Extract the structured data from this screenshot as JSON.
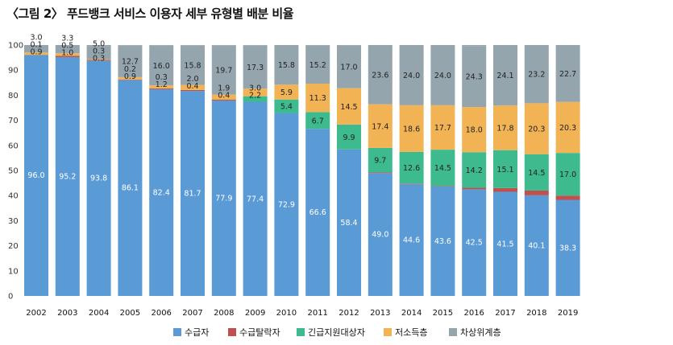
{
  "title": "〈그림 2〉 푸드뱅크 서비스 이용자 세부 유형별 배분 비율",
  "chart_data": {
    "type": "bar",
    "stacked": true,
    "title": "〈그림 2〉 푸드뱅크 서비스 이용자 세부 유형별 배분 비율",
    "categories": [
      "2002",
      "2003",
      "2004",
      "2005",
      "2006",
      "2007",
      "2008",
      "2009",
      "2010",
      "2011",
      "2012",
      "2013",
      "2014",
      "2015",
      "2016",
      "2017",
      "2018",
      "2019"
    ],
    "ylim": [
      0,
      100
    ],
    "yticks": [
      0,
      10,
      20,
      30,
      40,
      50,
      60,
      70,
      80,
      90,
      100
    ],
    "grid": false,
    "legend": "bottom",
    "series": [
      {
        "name": "수급자",
        "color": "#5b9bd5",
        "values": [
          96.0,
          95.2,
          93.8,
          86.1,
          82.4,
          81.7,
          77.9,
          77.4,
          72.9,
          66.6,
          58.4,
          49.0,
          44.6,
          43.6,
          42.5,
          41.5,
          40.1,
          38.3
        ]
      },
      {
        "name": "수급탈락자",
        "color": "#c0504d",
        "values": [
          0.1,
          0.5,
          0.3,
          0.2,
          0.3,
          0.4,
          0.4,
          0,
          0,
          0,
          0,
          0.3,
          0.2,
          0.2,
          0.6,
          1.5,
          1.9,
          1.7
        ]
      },
      {
        "name": "긴급지원대상자",
        "color": "#3dbb8e",
        "values": [
          0,
          0,
          0,
          0,
          0,
          0,
          0,
          2.2,
          5.4,
          6.7,
          9.9,
          9.7,
          12.6,
          14.5,
          14.2,
          15.1,
          14.5,
          17.0
        ]
      },
      {
        "name": "저소득층",
        "color": "#f2b354",
        "values": [
          0.9,
          1.0,
          0.3,
          0.9,
          1.2,
          2.0,
          1.9,
          3.0,
          5.9,
          11.3,
          14.5,
          17.4,
          18.6,
          17.7,
          18.0,
          17.8,
          20.3,
          20.3
        ]
      },
      {
        "name": "차상위계층",
        "color": "#95a5ae",
        "values": [
          3.0,
          3.3,
          5.0,
          12.7,
          16.0,
          15.8,
          19.7,
          17.3,
          15.8,
          15.2,
          17.0,
          23.6,
          24.0,
          24.0,
          24.3,
          24.1,
          23.2,
          22.7
        ]
      }
    ],
    "labels": [
      [
        "96.0",
        "0.1",
        "",
        "0.9",
        "3.0"
      ],
      [
        "95.2",
        "0.5",
        "",
        "1.0",
        "3.3"
      ],
      [
        "93.8",
        "0.3",
        "",
        "0.3",
        "5.0"
      ],
      [
        "86.1",
        "0.2",
        "",
        "0.9",
        "12.7"
      ],
      [
        "82.4",
        "0.3",
        "",
        "1.2",
        "16.0"
      ],
      [
        "81.7",
        "0.4",
        "",
        "2.0",
        "15.8"
      ],
      [
        "77.9",
        "0.4",
        "",
        "1.9",
        "19.7"
      ],
      [
        "77.4",
        "",
        "2.2",
        "3.0",
        "17.3"
      ],
      [
        "72.9",
        "",
        "5.4",
        "5.9",
        "15.8"
      ],
      [
        "66.6",
        "",
        "6.7",
        "11.3",
        "15.2"
      ],
      [
        "58.4",
        "",
        "9.9",
        "14.5",
        "17.0"
      ],
      [
        "49.0",
        "",
        "9.7",
        "17.4",
        "23.6"
      ],
      [
        "44.6",
        "",
        "12.6",
        "18.6",
        "24.0"
      ],
      [
        "43.6",
        "",
        "14.5",
        "17.7",
        "24.0"
      ],
      [
        "42.5",
        "",
        "14.2",
        "18.0",
        "24.3"
      ],
      [
        "41.5",
        "",
        "15.1",
        "17.8",
        "24.1"
      ],
      [
        "40.1",
        "",
        "14.5",
        "20.3",
        "23.2"
      ],
      [
        "38.3",
        "",
        "17.0",
        "20.3",
        "22.7"
      ]
    ]
  }
}
